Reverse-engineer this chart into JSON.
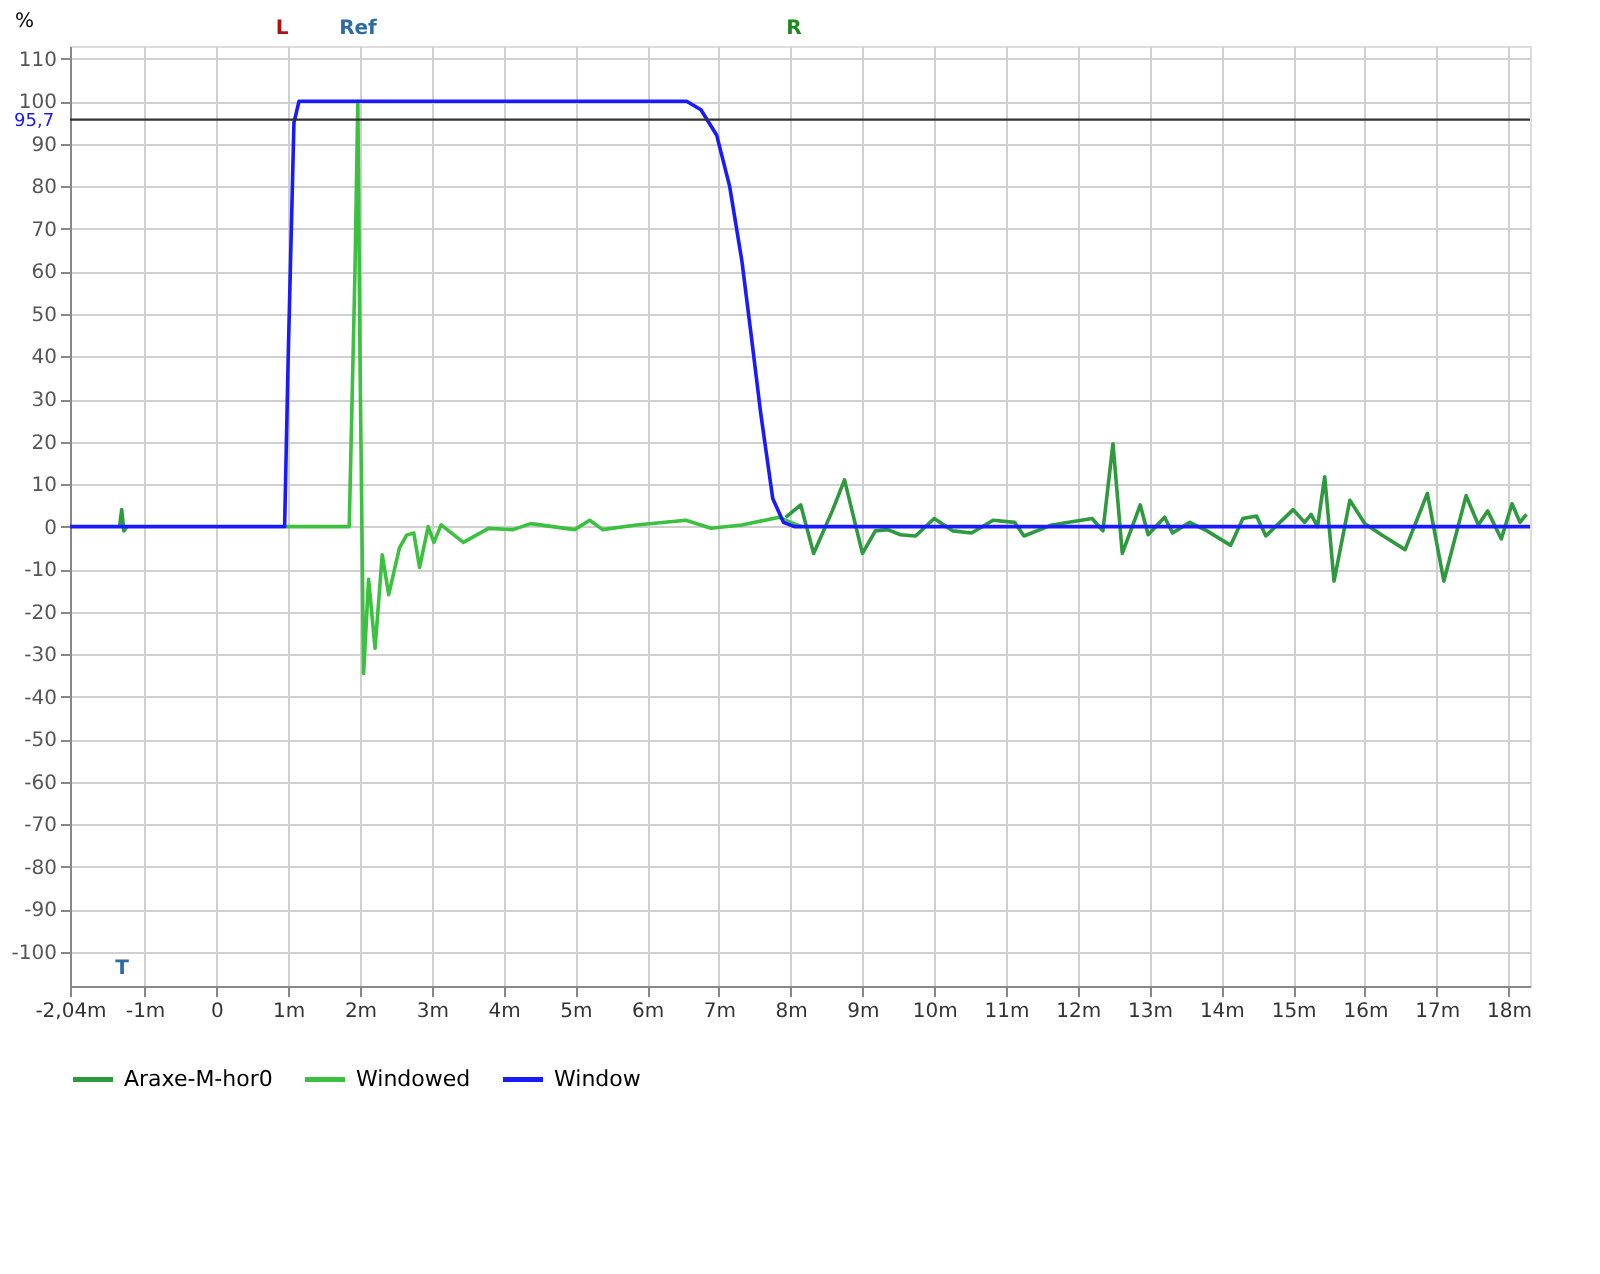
{
  "chart_data": {
    "type": "line",
    "ylabel": "%",
    "xlim": [
      -2.04,
      18.3
    ],
    "ylim": [
      -108,
      113
    ],
    "xticks": [
      {
        "value": -2.04,
        "label": "-2,04m"
      },
      {
        "value": -1,
        "label": "-1m"
      },
      0,
      {
        "value": 1,
        "label": "1m"
      },
      {
        "value": 2,
        "label": "2m"
      },
      {
        "value": 3,
        "label": "3m"
      },
      {
        "value": 4,
        "label": "4m"
      },
      {
        "value": 5,
        "label": "5m"
      },
      {
        "value": 6,
        "label": "6m"
      },
      {
        "value": 7,
        "label": "7m"
      },
      {
        "value": 8,
        "label": "8m"
      },
      {
        "value": 9,
        "label": "9m"
      },
      {
        "value": 10,
        "label": "10m"
      },
      {
        "value": 11,
        "label": "11m"
      },
      {
        "value": 12,
        "label": "12m"
      },
      {
        "value": 13,
        "label": "13m"
      },
      {
        "value": 14,
        "label": "14m"
      },
      {
        "value": 15,
        "label": "15m"
      },
      {
        "value": 16,
        "label": "16m"
      },
      {
        "value": 17,
        "label": "17m"
      },
      {
        "value": 18,
        "label": "18m"
      }
    ],
    "yticks": [
      -100,
      -90,
      -80,
      -70,
      -60,
      -50,
      -40,
      -30,
      -20,
      -10,
      0,
      10,
      20,
      30,
      40,
      50,
      60,
      70,
      80,
      90,
      100,
      110
    ],
    "grid": true,
    "legend": "bottom",
    "ref_lines": [
      {
        "axis": "y",
        "value": 95.7,
        "label": "95,7",
        "color": "#333333"
      }
    ],
    "annotations": [
      "L",
      "Ref",
      "R",
      "T"
    ],
    "series": [
      {
        "name": "Araxe-M-hor0",
        "color": "#2e9a3e",
        "x": [
          -1.35,
          -1.32,
          -1.29,
          -1.25,
          3,
          7.93,
          8.14,
          8.32,
          8.58,
          8.75,
          9.0,
          9.18,
          9.35,
          9.53,
          9.74,
          10.0,
          10.26,
          10.52,
          10.82,
          11.12,
          11.25,
          11.64,
          12.2,
          12.35,
          12.49,
          12.62,
          12.87,
          12.98,
          13.21,
          13.32,
          13.56,
          13.8,
          14.13,
          14.3,
          14.49,
          14.62,
          15.0,
          15.16,
          15.25,
          15.34,
          15.44,
          15.57,
          15.79,
          16.0,
          16.23,
          16.56,
          16.87,
          17.1,
          17.41,
          17.58,
          17.71,
          17.9,
          18.05,
          18.16,
          18.25
        ],
        "values": [
          0,
          4,
          -1,
          0,
          null,
          2.2,
          5.1,
          -6.3,
          3.7,
          11,
          -6.3,
          -1,
          -0.7,
          -1.9,
          -2.2,
          1.9,
          -1,
          -1.5,
          1.5,
          1,
          -2.2,
          0.4,
          1.9,
          -1,
          19.5,
          -6.3,
          5.1,
          -1.9,
          2.2,
          -1.5,
          1,
          -1,
          -4.4,
          1.9,
          2.5,
          -2.2,
          4,
          1,
          2.9,
          0,
          11.7,
          -12.8,
          6.2,
          0.7,
          -1.9,
          -5.4,
          7.8,
          -12.8,
          7.3,
          0.4,
          3.7,
          -2.9,
          5.4,
          1,
          2.9
        ]
      },
      {
        "name": "Windowed",
        "color": "#3cc040",
        "x": [
          0.95,
          1.85,
          1.93,
          1.97,
          2.0,
          2.05,
          2.12,
          2.21,
          2.31,
          2.4,
          2.55,
          2.65,
          2.75,
          2.83,
          2.95,
          3.03,
          3.13,
          3.44,
          3.79,
          4.13,
          4.38,
          4.99,
          5.2,
          5.38,
          5.85,
          6.54,
          6.89,
          7.32,
          7.84,
          8.0,
          8.15
        ],
        "values": [
          0,
          0,
          60,
          100,
          40,
          -34.5,
          -12.4,
          -28.6,
          -6.6,
          -16,
          -5,
          -2,
          -1.5,
          -9.6,
          0,
          -3.7,
          0.4,
          -3.7,
          -0.4,
          -0.7,
          0.7,
          -0.7,
          1.5,
          -0.7,
          0.4,
          1.5,
          -0.4,
          0.4,
          2.2,
          1,
          0
        ]
      },
      {
        "name": "Window",
        "color": "#1a1aff",
        "x": [
          -2.04,
          0.95,
          1.0,
          1.08,
          1.15,
          6.55,
          6.75,
          6.97,
          7.15,
          7.32,
          7.45,
          7.58,
          7.75,
          7.9,
          8.05,
          18.3
        ],
        "values": [
          0,
          0,
          40,
          95,
          100,
          100,
          98,
          92,
          80,
          62.5,
          45,
          27,
          6.6,
          1,
          0,
          0
        ]
      }
    ]
  }
}
